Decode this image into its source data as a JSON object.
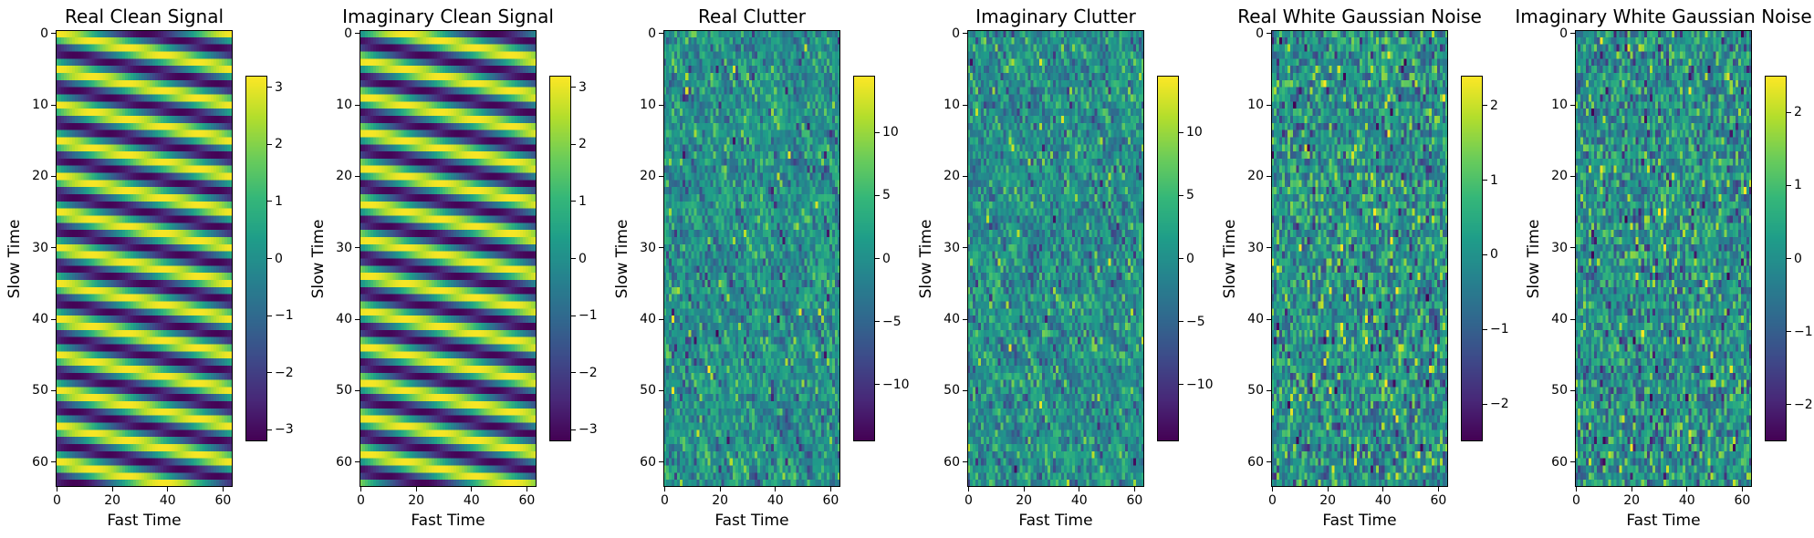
{
  "chart_data": [
    {
      "type": "heatmap",
      "title": "Real Clean Signal",
      "xlabel": "Fast Time",
      "ylabel": "Slow Time",
      "x_ticks": [
        0,
        20,
        40,
        60
      ],
      "y_ticks": [
        0,
        10,
        20,
        30,
        40,
        50,
        60
      ],
      "xlim": [
        -0.5,
        63.5
      ],
      "ylim": [
        63.5,
        -0.5
      ],
      "grid_size": [
        64,
        64
      ],
      "pattern": "diagonal-sinusoid",
      "colormap": "viridis",
      "colorbar": {
        "range": [
          -3.2,
          3.2
        ],
        "ticks": [
          -3,
          -2,
          -1,
          0,
          1,
          2,
          3
        ]
      }
    },
    {
      "type": "heatmap",
      "title": "Imaginary Clean Signal",
      "xlabel": "Fast Time",
      "ylabel": "Slow Time",
      "x_ticks": [
        0,
        20,
        40,
        60
      ],
      "y_ticks": [
        0,
        10,
        20,
        30,
        40,
        50,
        60
      ],
      "xlim": [
        -0.5,
        63.5
      ],
      "ylim": [
        63.5,
        -0.5
      ],
      "grid_size": [
        64,
        64
      ],
      "pattern": "diagonal-sinusoid",
      "colormap": "viridis",
      "colorbar": {
        "range": [
          -3.2,
          3.2
        ],
        "ticks": [
          -3,
          -2,
          -1,
          0,
          1,
          2,
          3
        ]
      }
    },
    {
      "type": "heatmap",
      "title": "Real Clutter",
      "xlabel": "Fast Time",
      "ylabel": "Slow Time",
      "x_ticks": [
        0,
        20,
        40,
        60
      ],
      "y_ticks": [
        0,
        10,
        20,
        30,
        40,
        50,
        60
      ],
      "xlim": [
        -0.5,
        63.5
      ],
      "ylim": [
        63.5,
        -0.5
      ],
      "grid_size": [
        64,
        64
      ],
      "pattern": "clutter",
      "colormap": "viridis",
      "colorbar": {
        "range": [
          -14.5,
          14.5
        ],
        "ticks": [
          -10,
          -5,
          0,
          5,
          10
        ]
      }
    },
    {
      "type": "heatmap",
      "title": "Imaginary Clutter",
      "xlabel": "Fast Time",
      "ylabel": "Slow Time",
      "x_ticks": [
        0,
        20,
        40,
        60
      ],
      "y_ticks": [
        0,
        10,
        20,
        30,
        40,
        50,
        60
      ],
      "xlim": [
        -0.5,
        63.5
      ],
      "ylim": [
        63.5,
        -0.5
      ],
      "grid_size": [
        64,
        64
      ],
      "pattern": "clutter",
      "colormap": "viridis",
      "colorbar": {
        "range": [
          -14.5,
          14.5
        ],
        "ticks": [
          -10,
          -5,
          0,
          5,
          10
        ]
      }
    },
    {
      "type": "heatmap",
      "title": "Real White Gaussian Noise",
      "xlabel": "Fast Time",
      "ylabel": "Slow Time",
      "x_ticks": [
        0,
        20,
        40,
        60
      ],
      "y_ticks": [
        0,
        10,
        20,
        30,
        40,
        50,
        60
      ],
      "xlim": [
        -0.5,
        63.5
      ],
      "ylim": [
        63.5,
        -0.5
      ],
      "grid_size": [
        64,
        64
      ],
      "pattern": "white-noise",
      "colormap": "viridis",
      "colorbar": {
        "range": [
          -2.5,
          2.4
        ],
        "ticks": [
          -2,
          -1,
          0,
          1,
          2
        ]
      }
    },
    {
      "type": "heatmap",
      "title": "Imaginary White Gaussian Noise",
      "xlabel": "Fast Time",
      "ylabel": "Slow Time",
      "x_ticks": [
        0,
        20,
        40,
        60
      ],
      "y_ticks": [
        0,
        10,
        20,
        30,
        40,
        50,
        60
      ],
      "xlim": [
        -0.5,
        63.5
      ],
      "ylim": [
        63.5,
        -0.5
      ],
      "grid_size": [
        64,
        64
      ],
      "pattern": "white-noise",
      "colormap": "viridis",
      "colorbar": {
        "range": [
          -2.5,
          2.5
        ],
        "ticks": [
          -2,
          -1,
          0,
          1,
          2
        ]
      }
    }
  ]
}
